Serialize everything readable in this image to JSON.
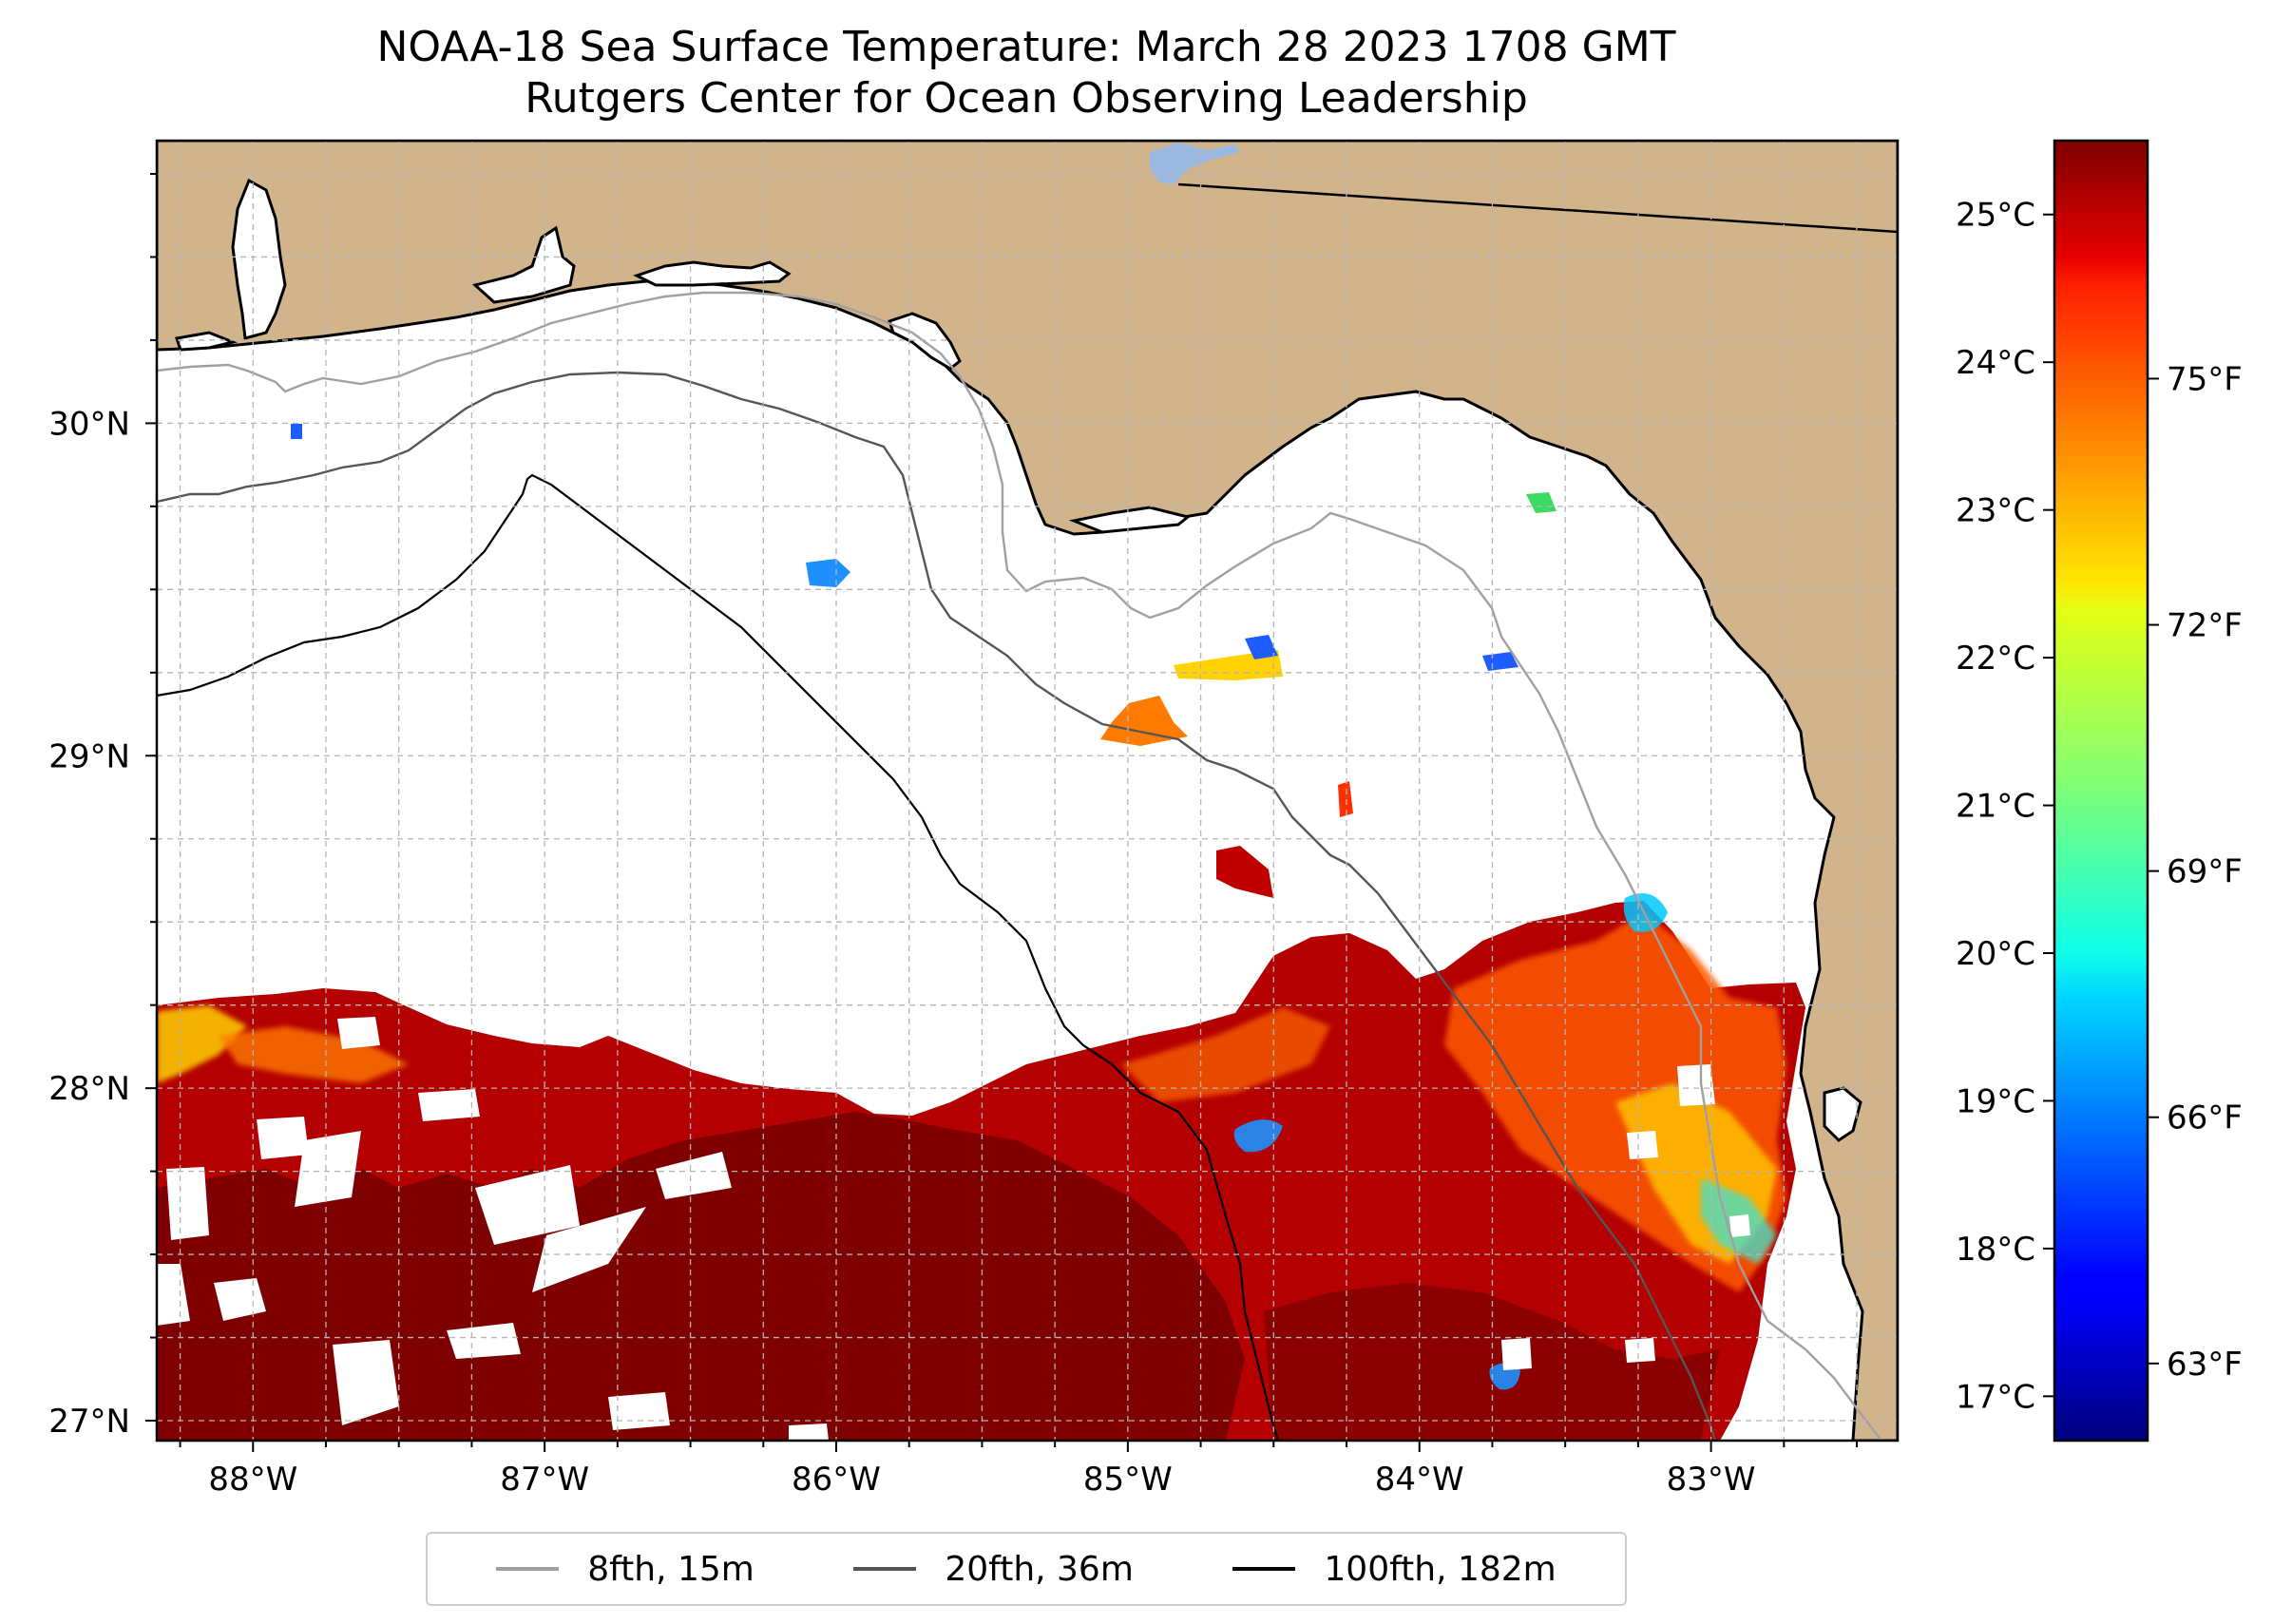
{
  "title": {
    "line1": "NOAA-18 Sea Surface Temperature: March 28 2023 1708 GMT",
    "line2": "Rutgers Center for Ocean Observing Leadership"
  },
  "map": {
    "lon_range": [
      -88.33,
      -82.36
    ],
    "lat_range": [
      26.94,
      30.85
    ],
    "land_color": "#d2b48c",
    "coastline_color": "#000000",
    "grid": true,
    "lon_ticks": [
      {
        "value": -88,
        "label": "88°W"
      },
      {
        "value": -87,
        "label": "87°W"
      },
      {
        "value": -86,
        "label": "86°W"
      },
      {
        "value": -85,
        "label": "85°W"
      },
      {
        "value": -84,
        "label": "84°W"
      },
      {
        "value": -83,
        "label": "83°W"
      }
    ],
    "lat_ticks": [
      {
        "value": 30,
        "label": "30°N"
      },
      {
        "value": 29,
        "label": "29°N"
      },
      {
        "value": 28,
        "label": "28°N"
      },
      {
        "value": 27,
        "label": "27°N"
      }
    ]
  },
  "legend": {
    "items": [
      {
        "label": "8fth, 15m",
        "color": "#a0a0a0"
      },
      {
        "label": "20fth, 36m",
        "color": "#555555"
      },
      {
        "label": "100fth, 182m",
        "color": "#000000"
      }
    ]
  },
  "colorbar": {
    "colormap": "jet",
    "min_c": 16.7,
    "max_c": 25.5,
    "celsius_ticks": [
      {
        "value": 17,
        "label": "17°C"
      },
      {
        "value": 18,
        "label": "18°C"
      },
      {
        "value": 19,
        "label": "19°C"
      },
      {
        "value": 20,
        "label": "20°C"
      },
      {
        "value": 21,
        "label": "21°C"
      },
      {
        "value": 22,
        "label": "22°C"
      },
      {
        "value": 23,
        "label": "23°C"
      },
      {
        "value": 24,
        "label": "24°C"
      },
      {
        "value": 25,
        "label": "25°C"
      }
    ],
    "fahrenheit_ticks": [
      {
        "value": 63,
        "label": "63°F"
      },
      {
        "value": 66,
        "label": "66°F"
      },
      {
        "value": 69,
        "label": "69°F"
      },
      {
        "value": 72,
        "label": "72°F"
      },
      {
        "value": 75,
        "label": "75°F"
      }
    ]
  }
}
